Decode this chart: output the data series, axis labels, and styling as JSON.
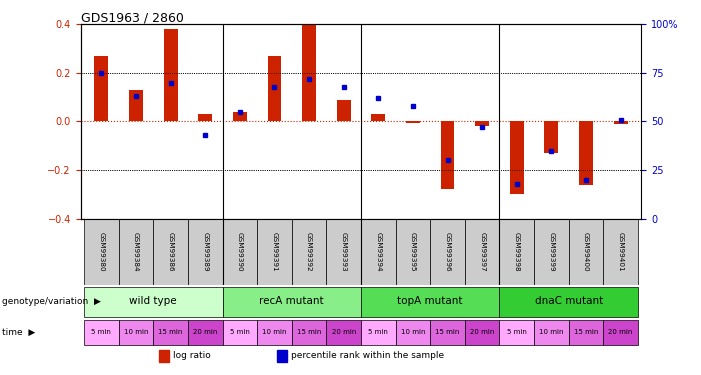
{
  "title": "GDS1963 / 2860",
  "samples": [
    "GSM99380",
    "GSM99384",
    "GSM99386",
    "GSM99389",
    "GSM99390",
    "GSM99391",
    "GSM99392",
    "GSM99393",
    "GSM99394",
    "GSM99395",
    "GSM99396",
    "GSM99397",
    "GSM99398",
    "GSM99399",
    "GSM99400",
    "GSM99401"
  ],
  "log_ratio": [
    0.27,
    0.13,
    0.38,
    0.03,
    0.04,
    0.27,
    0.4,
    0.09,
    0.03,
    -0.005,
    -0.28,
    -0.02,
    -0.3,
    -0.13,
    -0.26,
    -0.01
  ],
  "percentile": [
    75,
    63,
    70,
    43,
    55,
    68,
    72,
    68,
    62,
    58,
    30,
    47,
    18,
    35,
    20,
    51
  ],
  "ylim": [
    -0.4,
    0.4
  ],
  "y2lim": [
    0,
    100
  ],
  "yticks": [
    -0.4,
    -0.2,
    0.0,
    0.2,
    0.4
  ],
  "y2ticks": [
    0,
    25,
    50,
    75,
    100
  ],
  "bar_color": "#cc2200",
  "dot_color": "#0000cc",
  "hline_color": "#cc2200",
  "dotted_color": "#000000",
  "groups": [
    {
      "label": "wild type",
      "start": 0,
      "end": 4,
      "color": "#ccffcc"
    },
    {
      "label": "recA mutant",
      "start": 4,
      "end": 8,
      "color": "#88ee88"
    },
    {
      "label": "topA mutant",
      "start": 8,
      "end": 12,
      "color": "#55dd55"
    },
    {
      "label": "dnaC mutant",
      "start": 12,
      "end": 16,
      "color": "#33cc33"
    }
  ],
  "times": [
    "5 min",
    "10 min",
    "15 min",
    "20 min",
    "5 min",
    "10 min",
    "15 min",
    "20 min",
    "5 min",
    "10 min",
    "15 min",
    "20 min",
    "5 min",
    "10 min",
    "15 min",
    "20 min"
  ],
  "time_colors": [
    "#ffaaff",
    "#ee88ee",
    "#dd66dd",
    "#cc44cc",
    "#ffaaff",
    "#ee88ee",
    "#dd66dd",
    "#cc44cc",
    "#ffaaff",
    "#ee88ee",
    "#dd66dd",
    "#cc44cc",
    "#ffaaff",
    "#ee88ee",
    "#dd66dd",
    "#cc44cc"
  ],
  "legend_items": [
    {
      "label": "log ratio",
      "color": "#cc2200"
    },
    {
      "label": "percentile rank within the sample",
      "color": "#0000cc"
    }
  ],
  "sample_bg": "#cccccc",
  "bar_width": 0.4
}
